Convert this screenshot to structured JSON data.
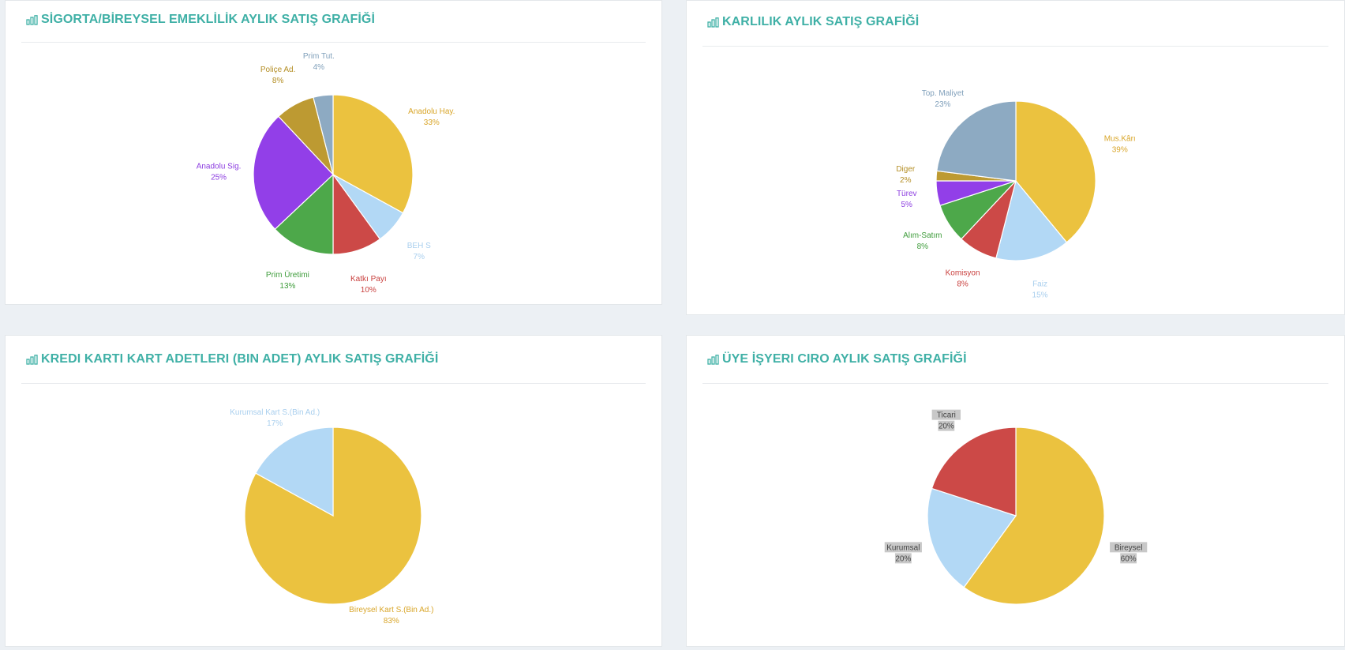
{
  "theme": {
    "title_color": "#3fb0a6",
    "colors": {
      "yellow": "#ebc23f",
      "light_blue": "#b2d8f5",
      "red": "#cc4947",
      "green": "#4da84a",
      "purple": "#923fe8",
      "olive": "#bd9a32",
      "steel": "#8daac2"
    }
  },
  "panels": [
    {
      "title": "SİGORTA/BİREYSEL EMEKLİLİK AYLIK SATIŞ GRAFİĞİ",
      "icon": "bar-chart-icon"
    },
    {
      "title": "KARLILIK AYLIK SATIŞ GRAFİĞİ",
      "icon": "bar-chart-icon"
    },
    {
      "title": "KREDI KARTI KART ADETLERI (BIN ADET) AYLIK SATIŞ GRAFİĞİ",
      "icon": "bar-chart-icon"
    },
    {
      "title": "ÜYE İŞYERI CIRO AYLIK SATIŞ GRAFİĞİ",
      "icon": "bar-chart-icon"
    }
  ],
  "chart_data": [
    {
      "type": "pie",
      "title": "SİGORTA/BİREYSEL EMEKLİLİK AYLIK SATIŞ GRAFİĞİ",
      "label_style": "text",
      "slices": [
        {
          "label": "Anadolu Hay.",
          "value": 33,
          "pct": "33%",
          "color": "#ebc23f",
          "label_color": "#d9a62a"
        },
        {
          "label": "BEH S",
          "value": 7,
          "pct": "7%",
          "color": "#b2d8f5",
          "label_color": "#a9cfee"
        },
        {
          "label": "Katkı Payı",
          "value": 10,
          "pct": "10%",
          "color": "#cc4947",
          "label_color": "#c9403e"
        },
        {
          "label": "Prim Üretimi",
          "value": 13,
          "pct": "13%",
          "color": "#4da84a",
          "label_color": "#3e9c3b"
        },
        {
          "label": "Anadolu Sig.",
          "value": 25,
          "pct": "25%",
          "color": "#923fe8",
          "label_color": "#8c3de0"
        },
        {
          "label": "Poliçe Ad.",
          "value": 8,
          "pct": "8%",
          "color": "#bd9a32",
          "label_color": "#b48e24"
        },
        {
          "label": "Prim Tut.",
          "value": 4,
          "pct": "4%",
          "color": "#8daac2",
          "label_color": "#7f9fba"
        }
      ]
    },
    {
      "type": "pie",
      "title": "KARLILIK AYLIK SATIŞ GRAFİĞİ",
      "label_style": "text",
      "slices": [
        {
          "label": "Mus.Kârı",
          "value": 39,
          "pct": "39%",
          "color": "#ebc23f",
          "label_color": "#d9a62a"
        },
        {
          "label": "Faiz",
          "value": 15,
          "pct": "15%",
          "color": "#b2d8f5",
          "label_color": "#a9cfee"
        },
        {
          "label": "Komisyon",
          "value": 8,
          "pct": "8%",
          "color": "#cc4947",
          "label_color": "#c9403e"
        },
        {
          "label": "Alım-Satım",
          "value": 8,
          "pct": "8%",
          "color": "#4da84a",
          "label_color": "#3e9c3b"
        },
        {
          "label": "Türev",
          "value": 5,
          "pct": "5%",
          "color": "#923fe8",
          "label_color": "#8c3de0"
        },
        {
          "label": "Diger",
          "value": 2,
          "pct": "2%",
          "color": "#bd9a32",
          "label_color": "#b48e24"
        },
        {
          "label": "Top. Maliyet",
          "value": 23,
          "pct": "23%",
          "color": "#8daac2",
          "label_color": "#7f9fba"
        }
      ]
    },
    {
      "type": "pie",
      "title": "KREDI KARTI KART ADETLERI (BIN ADET) AYLIK SATIŞ GRAFİĞİ",
      "label_style": "text",
      "slices": [
        {
          "label": "Bireysel Kart S.(Bin Ad.)",
          "value": 83,
          "pct": "83%",
          "color": "#ebc23f",
          "label_color": "#d9a62a"
        },
        {
          "label": "Kurumsal Kart S.(Bin Ad.)",
          "value": 17,
          "pct": "17%",
          "color": "#b2d8f5",
          "label_color": "#a9cfee"
        }
      ]
    },
    {
      "type": "pie",
      "title": "ÜYE İŞYERI CIRO AYLIK SATIŞ GRAFİĞİ",
      "label_style": "boxed",
      "slices": [
        {
          "label": "Bireysel",
          "value": 60,
          "pct": "60%",
          "color": "#ebc23f",
          "label_color": "#444444"
        },
        {
          "label": "Kurumsal",
          "value": 20,
          "pct": "20%",
          "color": "#b2d8f5",
          "label_color": "#444444"
        },
        {
          "label": "Ticari",
          "value": 20,
          "pct": "20%",
          "color": "#cc4947",
          "label_color": "#444444"
        }
      ]
    }
  ]
}
